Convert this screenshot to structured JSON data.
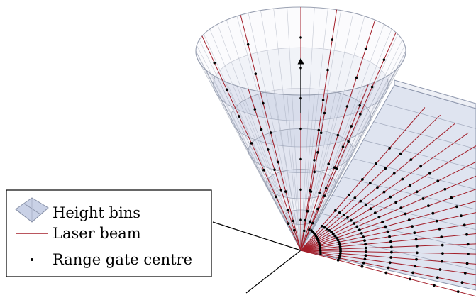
{
  "legend": {
    "height_bins": "Height bins",
    "laser_beam": "Laser beam",
    "range_gate_centre": "Range gate centre"
  },
  "colors": {
    "beam": "#a31f2a",
    "bin_fill": "#c5cde3",
    "bin_edge": "#8e97ad",
    "cone_line": "#9aa1b2",
    "dot": "#000000",
    "axis": "#000000"
  },
  "icons": [
    "height-bins-swatch-icon",
    "laser-beam-line-icon",
    "range-gate-dot-icon",
    "vertical-arrow-icon",
    "elevation-arc-icon"
  ]
}
